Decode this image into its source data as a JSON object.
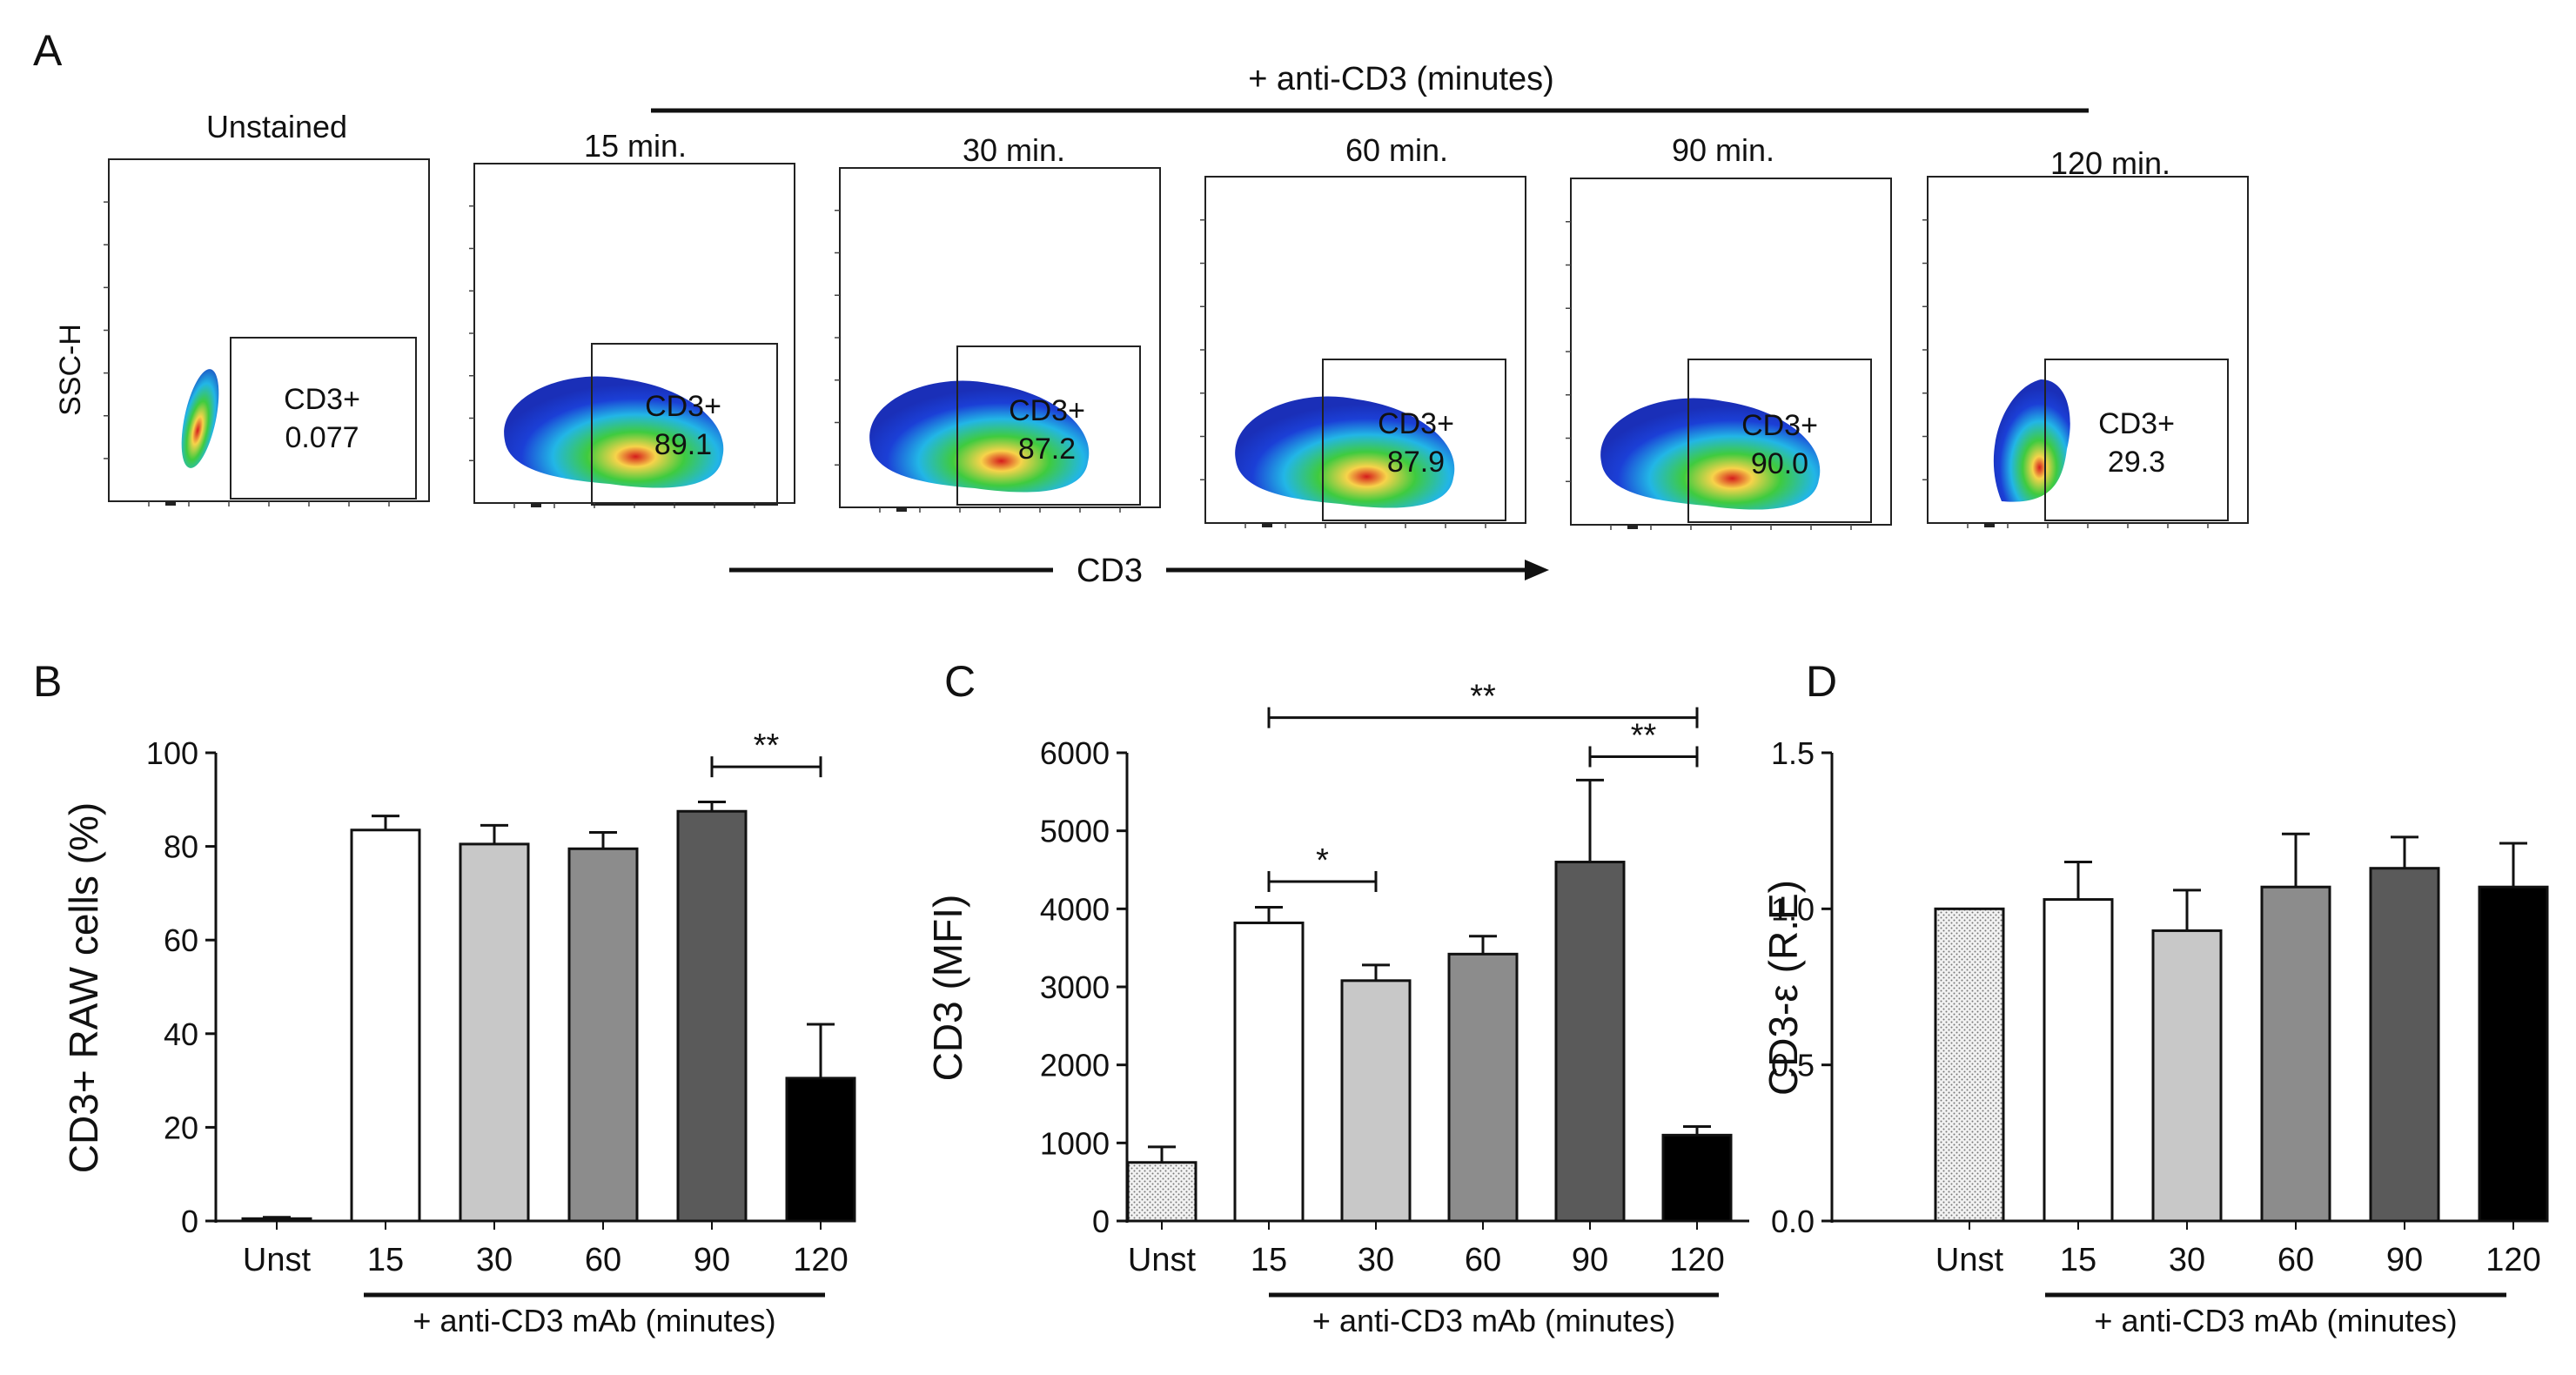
{
  "panelA": {
    "letter": "A",
    "banner": "+ anti-CD3 (minutes)",
    "ylabel": "SSC-H",
    "xlabel": "CD3",
    "plots": [
      {
        "title": "Unstained",
        "gate_label": "CD3+",
        "gate_value": "0.077"
      },
      {
        "title": "15 min.",
        "gate_label": "CD3+",
        "gate_value": "89.1"
      },
      {
        "title": "30 min.",
        "gate_label": "CD3+",
        "gate_value": "87.2"
      },
      {
        "title": "60 min.",
        "gate_label": "CD3+",
        "gate_value": "87.9"
      },
      {
        "title": "90 min.",
        "gate_label": "CD3+",
        "gate_value": "90.0"
      },
      {
        "title": "120 min.",
        "gate_label": "CD3+",
        "gate_value": "29.3"
      }
    ]
  },
  "chart_data": [
    {
      "panel": "B",
      "type": "bar",
      "ylabel": "CD3+ RAW cells (%)",
      "xlabel": "+ anti-CD3 mAb (minutes)",
      "categories": [
        "Unst",
        "15",
        "30",
        "60",
        "90",
        "120"
      ],
      "values": [
        0.5,
        83.5,
        80.5,
        79.5,
        87.5,
        30.5
      ],
      "errors": [
        0.3,
        3,
        4,
        3.5,
        2,
        11.5
      ],
      "fills": [
        "white",
        "white",
        "#c8c8c8",
        "#8c8c8c",
        "#5a5a5a",
        "#000000"
      ],
      "ylim": [
        0,
        100
      ],
      "yticks": [
        "0",
        "20",
        "40",
        "60",
        "80",
        "100"
      ],
      "yticks_values": [
        0,
        20,
        40,
        60,
        80,
        100
      ],
      "significance": [
        {
          "from": 4,
          "to": 5,
          "label": "**",
          "y": 97
        }
      ]
    },
    {
      "panel": "C",
      "type": "bar",
      "ylabel": "CD3 (MFI)",
      "xlabel": "+ anti-CD3 mAb (minutes)",
      "categories": [
        "Unst",
        "15",
        "30",
        "60",
        "90",
        "120"
      ],
      "values": [
        750,
        3820,
        3080,
        3420,
        4600,
        1100
      ],
      "errors": [
        200,
        200,
        200,
        230,
        1050,
        110
      ],
      "fills": [
        "dotted",
        "white",
        "#c8c8c8",
        "#8c8c8c",
        "#5a5a5a",
        "#000000"
      ],
      "ylim": [
        0,
        6000
      ],
      "yticks": [
        "0",
        "1000",
        "2000",
        "3000",
        "4000",
        "5000",
        "6000"
      ],
      "yticks_values": [
        0,
        1000,
        2000,
        3000,
        4000,
        5000,
        6000
      ],
      "significance": [
        {
          "from": 1,
          "to": 2,
          "label": "*",
          "y": 4350
        },
        {
          "from": 1,
          "to": 5,
          "label": "**",
          "y": 6450
        },
        {
          "from": 4,
          "to": 5,
          "label": "**",
          "y": 5950
        }
      ]
    },
    {
      "panel": "D",
      "type": "bar",
      "ylabel": "CD3-ε (R.E)",
      "xlabel": "+ anti-CD3 mAb (minutes)",
      "categories": [
        "Unst",
        "15",
        "30",
        "60",
        "90",
        "120"
      ],
      "values": [
        1.0,
        1.03,
        0.93,
        1.07,
        1.13,
        1.07
      ],
      "errors": [
        0,
        0.12,
        0.13,
        0.17,
        0.1,
        0.14
      ],
      "fills": [
        "dotted",
        "white",
        "#c8c8c8",
        "#8c8c8c",
        "#5a5a5a",
        "#000000"
      ],
      "ylim": [
        0,
        1.5
      ],
      "yticks": [
        "0.0",
        "0.5",
        "1.0",
        "1.5"
      ],
      "yticks_values": [
        0,
        0.5,
        1.0,
        1.5
      ],
      "significance": []
    }
  ]
}
